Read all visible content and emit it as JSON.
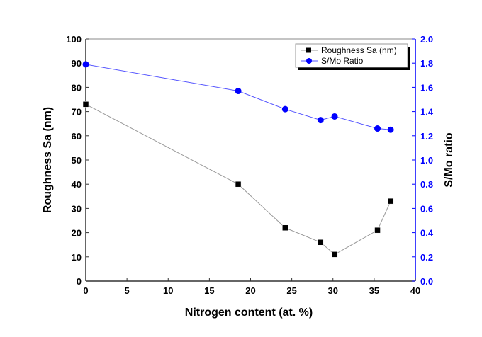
{
  "chart_data": {
    "type": "line",
    "title": "",
    "xlabel": "Nitrogen content (at. %)",
    "ylabel": "Roughness Sa (nm)",
    "y2label": "S/Mo ratio",
    "xlim": [
      0,
      40
    ],
    "ylim": [
      0,
      100
    ],
    "y2lim": [
      0,
      2.0
    ],
    "xticks": [
      "0",
      "5",
      "10",
      "15",
      "20",
      "25",
      "30",
      "35",
      "40"
    ],
    "yticks": [
      "0",
      "10",
      "20",
      "30",
      "40",
      "50",
      "60",
      "70",
      "80",
      "90",
      "100"
    ],
    "y2ticks": [
      "0.0",
      "0.2",
      "0.4",
      "0.6",
      "0.8",
      "1.0",
      "1.2",
      "1.4",
      "1.6",
      "1.8",
      "2.0"
    ],
    "grid": false,
    "legend_position": "top-right",
    "series": [
      {
        "name": "Roughness Sa (nm)",
        "axis": "left",
        "color": "#000000",
        "line_color": "#999999",
        "marker": "square",
        "x": [
          0,
          18.5,
          24.2,
          28.5,
          30.2,
          35.4,
          37.0
        ],
        "y": [
          73,
          40,
          22,
          16,
          11,
          21,
          33
        ]
      },
      {
        "name": "S/Mo Ratio",
        "axis": "right",
        "color": "#0000ff",
        "line_color": "#5555ff",
        "marker": "circle",
        "x": [
          0,
          18.5,
          24.2,
          28.5,
          30.2,
          35.4,
          37.0
        ],
        "y": [
          1.79,
          1.57,
          1.42,
          1.33,
          1.36,
          1.26,
          1.25
        ]
      }
    ]
  }
}
